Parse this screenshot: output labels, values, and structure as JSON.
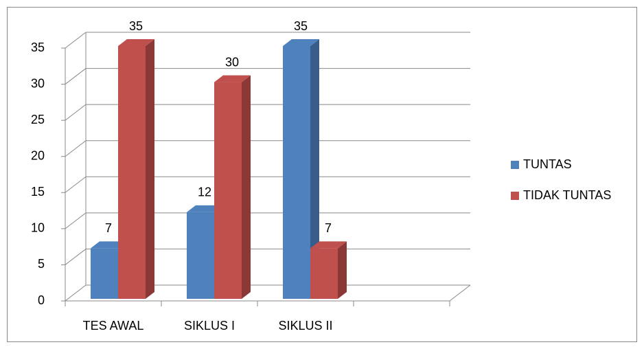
{
  "chart_data": {
    "type": "bar3d",
    "categories": [
      "TES AWAL",
      "SIKLUS I",
      "SIKLUS II",
      null
    ],
    "series": [
      {
        "name": "TUNTAS",
        "color": "#4f81bd",
        "side": "#385d8a",
        "values": [
          7,
          12,
          35,
          null
        ]
      },
      {
        "name": "TIDAK TUNTAS",
        "color": "#c0504d",
        "side": "#8c3836",
        "values": [
          35,
          30,
          7,
          null
        ]
      }
    ],
    "ylim": [
      0,
      35
    ],
    "yticks": [
      0,
      5,
      10,
      15,
      20,
      25,
      30,
      35
    ],
    "grid": true,
    "legend": "right"
  }
}
